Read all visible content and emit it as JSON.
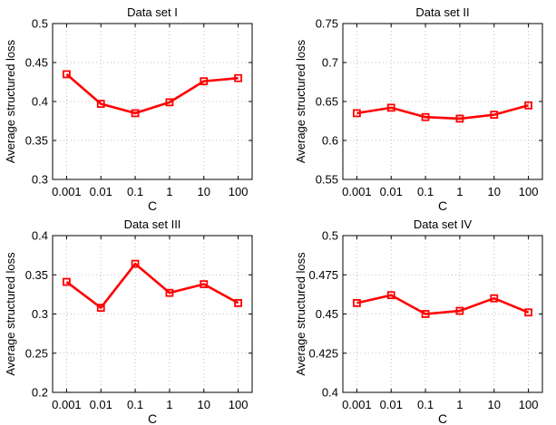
{
  "chart_data": [
    {
      "type": "line",
      "title": "Data set I",
      "xlabel": "C",
      "ylabel": "Average structured loss",
      "categories": [
        "0.001",
        "0.01",
        "0.1",
        "1",
        "10",
        "100"
      ],
      "values": [
        0.435,
        0.397,
        0.385,
        0.399,
        0.426,
        0.43
      ],
      "ylim": [
        0.3,
        0.5
      ],
      "yticks": [
        0.3,
        0.35,
        0.4,
        0.45,
        0.5
      ],
      "ytick_labels": [
        "0.3",
        "0.35",
        "0.4",
        "0.45",
        "0.5"
      ],
      "grid": true,
      "marker": "square",
      "color": "#ff0000"
    },
    {
      "type": "line",
      "title": "Data set II",
      "xlabel": "C",
      "ylabel": "Average structured loss",
      "categories": [
        "0.001",
        "0.01",
        "0.1",
        "1",
        "10",
        "100"
      ],
      "values": [
        0.635,
        0.642,
        0.63,
        0.628,
        0.633,
        0.645
      ],
      "ylim": [
        0.55,
        0.75
      ],
      "yticks": [
        0.55,
        0.6,
        0.65,
        0.7,
        0.75
      ],
      "ytick_labels": [
        "0.55",
        "0.6",
        "0.65",
        "0.7",
        "0.75"
      ],
      "grid": true,
      "marker": "square",
      "color": "#ff0000"
    },
    {
      "type": "line",
      "title": "Data set III",
      "xlabel": "C",
      "ylabel": "Average structured loss",
      "categories": [
        "0.001",
        "0.01",
        "0.1",
        "1",
        "10",
        "100"
      ],
      "values": [
        0.341,
        0.308,
        0.364,
        0.327,
        0.338,
        0.314
      ],
      "ylim": [
        0.2,
        0.4
      ],
      "yticks": [
        0.2,
        0.25,
        0.3,
        0.35,
        0.4
      ],
      "ytick_labels": [
        "0.2",
        "0.25",
        "0.3",
        "0.35",
        "0.4"
      ],
      "grid": true,
      "marker": "square",
      "color": "#ff0000"
    },
    {
      "type": "line",
      "title": "Data set IV",
      "xlabel": "C",
      "ylabel": "Average structured loss",
      "categories": [
        "0.001",
        "0.01",
        "0.1",
        "1",
        "10",
        "100"
      ],
      "values": [
        0.457,
        0.462,
        0.45,
        0.452,
        0.46,
        0.451
      ],
      "ylim": [
        0.4,
        0.5
      ],
      "yticks": [
        0.4,
        0.425,
        0.45,
        0.475,
        0.5
      ],
      "ytick_labels": [
        "0.4",
        "0.425",
        "0.45",
        "0.475",
        "0.5"
      ],
      "grid": true,
      "marker": "square",
      "color": "#ff0000"
    }
  ]
}
